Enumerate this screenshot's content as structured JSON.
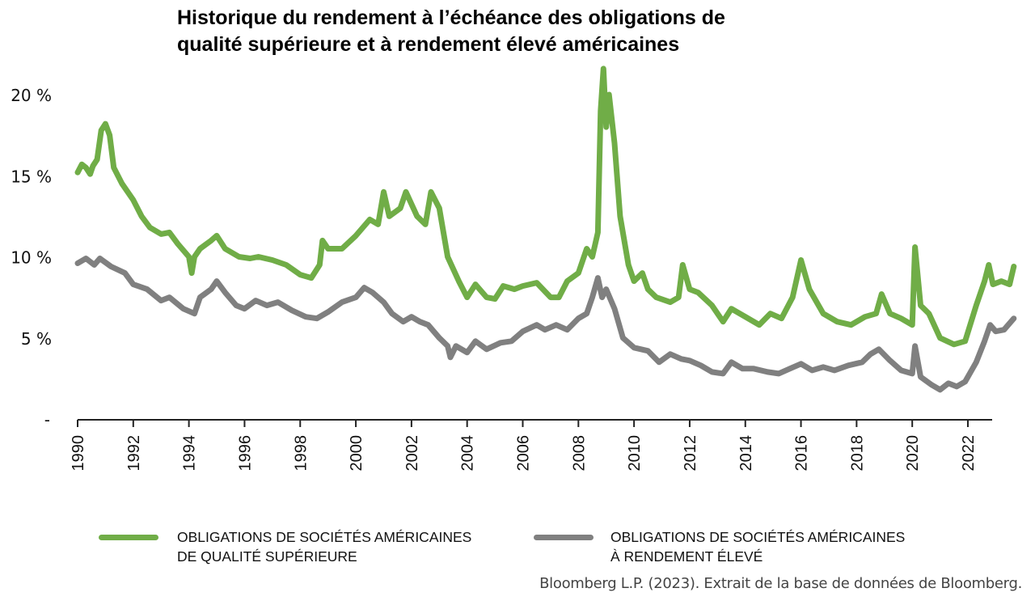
{
  "chart_data": {
    "type": "line",
    "title": "Historique du rendement à l’échéance des obligations de qualité supérieure et à rendement élevé américaines",
    "title_lines": [
      "Historique du rendement à l’échéance des obligations de",
      "qualité supérieure et à rendement élevé américaines"
    ],
    "xlabel": "",
    "ylabel": "",
    "xlim": [
      1990,
      2023.9
    ],
    "ylim": [
      0,
      20
    ],
    "x_ticks": [
      "1990",
      "1992",
      "1994",
      "1996",
      "1998",
      "2000",
      "2002",
      "2004",
      "2006",
      "2008",
      "2010",
      "2012",
      "2014",
      "2016",
      "2018",
      "2020",
      "2022"
    ],
    "x_tick_values": [
      1990,
      1992,
      1994,
      1996,
      1998,
      2000,
      2002,
      2004,
      2006,
      2008,
      2010,
      2012,
      2014,
      2016,
      2018,
      2020,
      2022
    ],
    "y_ticks": [
      "20 %",
      "15 %",
      "10 %",
      "5 %",
      "-"
    ],
    "y_tick_values": [
      20,
      15,
      10,
      5,
      0
    ],
    "grid": false,
    "legend_position": "bottom",
    "series": [
      {
        "name": "OBLIGATIONS DE SOCIÉTÉS AMÉRICAINES DE QUALITÉ SUPÉRIEURE",
        "legend_lines": [
          "OBLIGATIONS DE SOCIÉTÉS AMÉRICAINES",
          "DE QUALITÉ SUPÉRIEURE"
        ],
        "color": "#70ad47",
        "x": [
          1990.0,
          1990.15,
          1990.3,
          1990.45,
          1990.55,
          1990.7,
          1990.85,
          1991.0,
          1991.15,
          1991.3,
          1991.6,
          1992.0,
          1992.3,
          1992.6,
          1993.0,
          1993.3,
          1993.6,
          1994.0,
          1994.1,
          1994.2,
          1994.4,
          1994.8,
          1995.0,
          1995.3,
          1995.8,
          1996.2,
          1996.5,
          1997.0,
          1997.5,
          1998.0,
          1998.4,
          1998.7,
          1998.8,
          1999.0,
          1999.5,
          2000.0,
          2000.5,
          2000.8,
          2001.0,
          2001.2,
          2001.6,
          2001.8,
          2002.2,
          2002.5,
          2002.7,
          2003.0,
          2003.3,
          2003.7,
          2004.0,
          2004.3,
          2004.7,
          2005.0,
          2005.3,
          2005.7,
          2006.0,
          2006.5,
          2007.0,
          2007.3,
          2007.6,
          2008.0,
          2008.3,
          2008.5,
          2008.7,
          2008.8,
          2008.9,
          2009.0,
          2009.1,
          2009.3,
          2009.5,
          2009.8,
          2010.0,
          2010.3,
          2010.5,
          2010.8,
          2011.3,
          2011.6,
          2011.75,
          2012.0,
          2012.3,
          2012.8,
          2013.2,
          2013.5,
          2014.0,
          2014.5,
          2014.9,
          2015.3,
          2015.7,
          2016.0,
          2016.3,
          2016.8,
          2017.3,
          2017.8,
          2018.3,
          2018.7,
          2018.9,
          2019.2,
          2019.6,
          2020.0,
          2020.1,
          2020.3,
          2020.6,
          2021.0,
          2021.5,
          2021.9,
          2022.3,
          2022.6,
          2022.75,
          2022.9,
          2023.2,
          2023.5,
          2023.65
        ],
        "values": [
          15.2,
          15.7,
          15.5,
          15.1,
          15.6,
          16.0,
          17.8,
          18.2,
          17.5,
          15.5,
          14.5,
          13.5,
          12.5,
          11.8,
          11.4,
          11.5,
          10.8,
          10.0,
          9.0,
          10.0,
          10.5,
          11.0,
          11.3,
          10.5,
          10.0,
          9.9,
          10.0,
          9.8,
          9.5,
          8.9,
          8.7,
          9.5,
          11.0,
          10.5,
          10.5,
          11.3,
          12.3,
          12.0,
          14.0,
          12.5,
          13.0,
          14.0,
          12.5,
          12.0,
          14.0,
          13.0,
          10.0,
          8.5,
          7.5,
          8.3,
          7.5,
          7.4,
          8.2,
          8.0,
          8.2,
          8.4,
          7.5,
          7.5,
          8.5,
          9.0,
          10.5,
          10.0,
          11.5,
          19.0,
          21.6,
          18.0,
          20.0,
          17.0,
          12.5,
          9.5,
          8.5,
          9.0,
          8.0,
          7.5,
          7.2,
          7.5,
          9.5,
          8.0,
          7.8,
          7.0,
          6.0,
          6.8,
          6.3,
          5.8,
          6.5,
          6.2,
          7.5,
          9.8,
          8.0,
          6.5,
          6.0,
          5.8,
          6.3,
          6.5,
          7.7,
          6.5,
          6.2,
          5.8,
          10.6,
          7.0,
          6.5,
          5.0,
          4.6,
          4.8,
          7.0,
          8.5,
          9.5,
          8.3,
          8.5,
          8.3,
          9.4
        ]
      },
      {
        "name": "OBLIGATIONS DE SOCIÉTÉS AMÉRICAINES À RENDEMENT ÉLEVÉ",
        "legend_lines": [
          "OBLIGATIONS DE SOCIÉTÉS AMÉRICAINES",
          "À RENDEMENT ÉLEVÉ"
        ],
        "color": "#808080",
        "x": [
          1990.0,
          1990.3,
          1990.6,
          1990.8,
          1991.2,
          1991.7,
          1992.0,
          1992.5,
          1993.0,
          1993.3,
          1993.8,
          1994.2,
          1994.4,
          1994.8,
          1995.0,
          1995.3,
          1995.7,
          1996.0,
          1996.4,
          1996.8,
          1997.2,
          1997.7,
          1998.2,
          1998.6,
          1999.0,
          1999.5,
          2000.0,
          2000.3,
          2000.6,
          2001.0,
          2001.3,
          2001.7,
          2002.0,
          2002.3,
          2002.6,
          2003.0,
          2003.3,
          2003.4,
          2003.6,
          2004.0,
          2004.3,
          2004.7,
          2005.2,
          2005.6,
          2006.0,
          2006.5,
          2006.8,
          2007.2,
          2007.6,
          2008.0,
          2008.3,
          2008.5,
          2008.7,
          2008.85,
          2009.0,
          2009.3,
          2009.6,
          2010.0,
          2010.5,
          2010.9,
          2011.3,
          2011.7,
          2012.0,
          2012.4,
          2012.8,
          2013.2,
          2013.5,
          2013.9,
          2014.3,
          2014.8,
          2015.2,
          2015.6,
          2016.0,
          2016.4,
          2016.8,
          2017.2,
          2017.7,
          2018.2,
          2018.5,
          2018.8,
          2019.2,
          2019.6,
          2020.0,
          2020.1,
          2020.3,
          2020.7,
          2021.0,
          2021.3,
          2021.6,
          2021.9,
          2022.3,
          2022.6,
          2022.8,
          2023.0,
          2023.3,
          2023.65
        ],
        "values": [
          9.6,
          9.9,
          9.5,
          9.9,
          9.4,
          9.0,
          8.3,
          8.0,
          7.3,
          7.5,
          6.8,
          6.5,
          7.5,
          8.0,
          8.5,
          7.8,
          7.0,
          6.8,
          7.3,
          7.0,
          7.2,
          6.7,
          6.3,
          6.2,
          6.6,
          7.2,
          7.5,
          8.1,
          7.8,
          7.2,
          6.5,
          6.0,
          6.3,
          6.0,
          5.8,
          5.0,
          4.5,
          3.8,
          4.5,
          4.1,
          4.8,
          4.3,
          4.7,
          4.8,
          5.4,
          5.8,
          5.5,
          5.8,
          5.5,
          6.2,
          6.5,
          7.5,
          8.7,
          7.5,
          8.0,
          6.8,
          5.0,
          4.4,
          4.2,
          3.5,
          4.0,
          3.7,
          3.6,
          3.3,
          2.9,
          2.8,
          3.5,
          3.1,
          3.1,
          2.9,
          2.8,
          3.1,
          3.4,
          3.0,
          3.2,
          3.0,
          3.3,
          3.5,
          4.0,
          4.3,
          3.6,
          3.0,
          2.8,
          4.5,
          2.6,
          2.1,
          1.8,
          2.2,
          2.0,
          2.3,
          3.5,
          4.8,
          5.8,
          5.4,
          5.5,
          6.2
        ]
      }
    ]
  },
  "source": "Bloomberg L.P. (2023). Extrait de la base de données de Bloomberg."
}
